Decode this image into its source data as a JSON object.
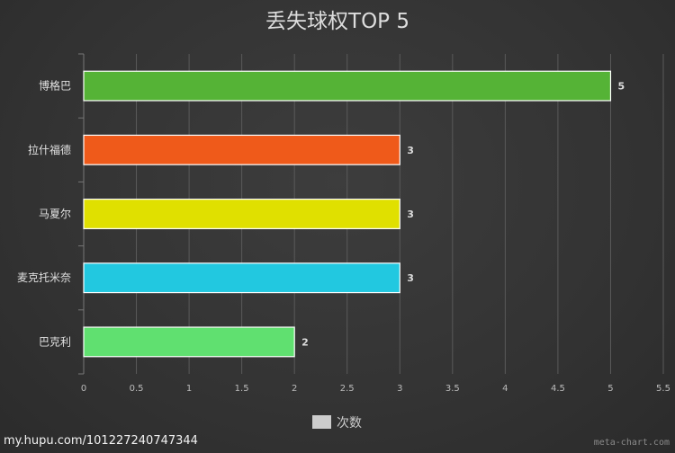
{
  "chart_data": {
    "type": "bar",
    "orientation": "horizontal",
    "title": "丢失球权TOP 5",
    "categories": [
      "博格巴",
      "拉什福德",
      "马夏尔",
      "麦克托米奈",
      "巴克利"
    ],
    "series": [
      {
        "name": "次数",
        "values": [
          5,
          3,
          3,
          3,
          2
        ],
        "colors": [
          "#55b336",
          "#ef5a1a",
          "#e0e000",
          "#22c8e0",
          "#60e070"
        ]
      }
    ],
    "xlim": [
      0,
      5.5
    ],
    "xticks": [
      "0",
      "0.5",
      "1",
      "1.5",
      "2",
      "2.5",
      "3",
      "3.5",
      "4",
      "4.5",
      "5",
      "5.5"
    ],
    "xlabel": "",
    "ylabel": "",
    "grid": true,
    "legend_position": "bottom-center",
    "legend_color": "#cccccc"
  },
  "watermark": "my.hupu.com/101227240747344",
  "credit": "meta-chart.com"
}
